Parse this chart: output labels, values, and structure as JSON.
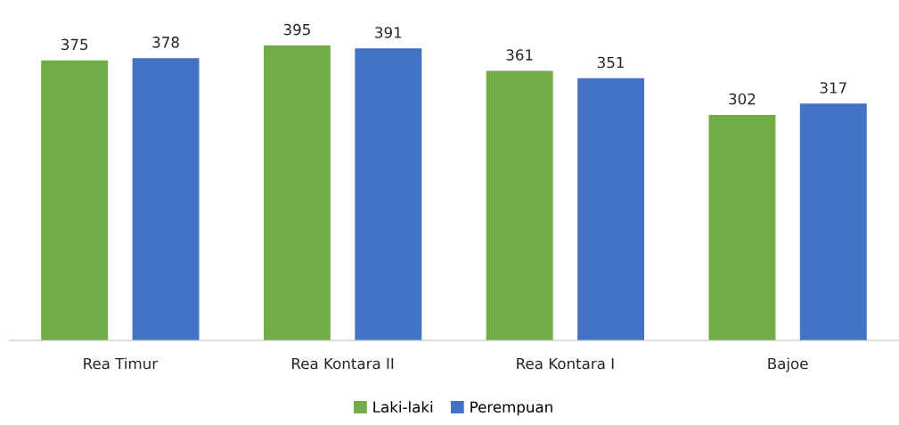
{
  "chart_data": {
    "type": "bar",
    "categories": [
      "Rea Timur",
      "Rea Kontara II",
      "Rea Kontara I",
      "Bajoe"
    ],
    "series": [
      {
        "name": "Laki-laki",
        "color": "#70ad47",
        "values": [
          375,
          395,
          361,
          302
        ]
      },
      {
        "name": "Perempuan",
        "color": "#4472c4",
        "values": [
          378,
          391,
          351,
          317
        ]
      }
    ],
    "data_labels": true,
    "legend": "bottom",
    "grid": false
  }
}
